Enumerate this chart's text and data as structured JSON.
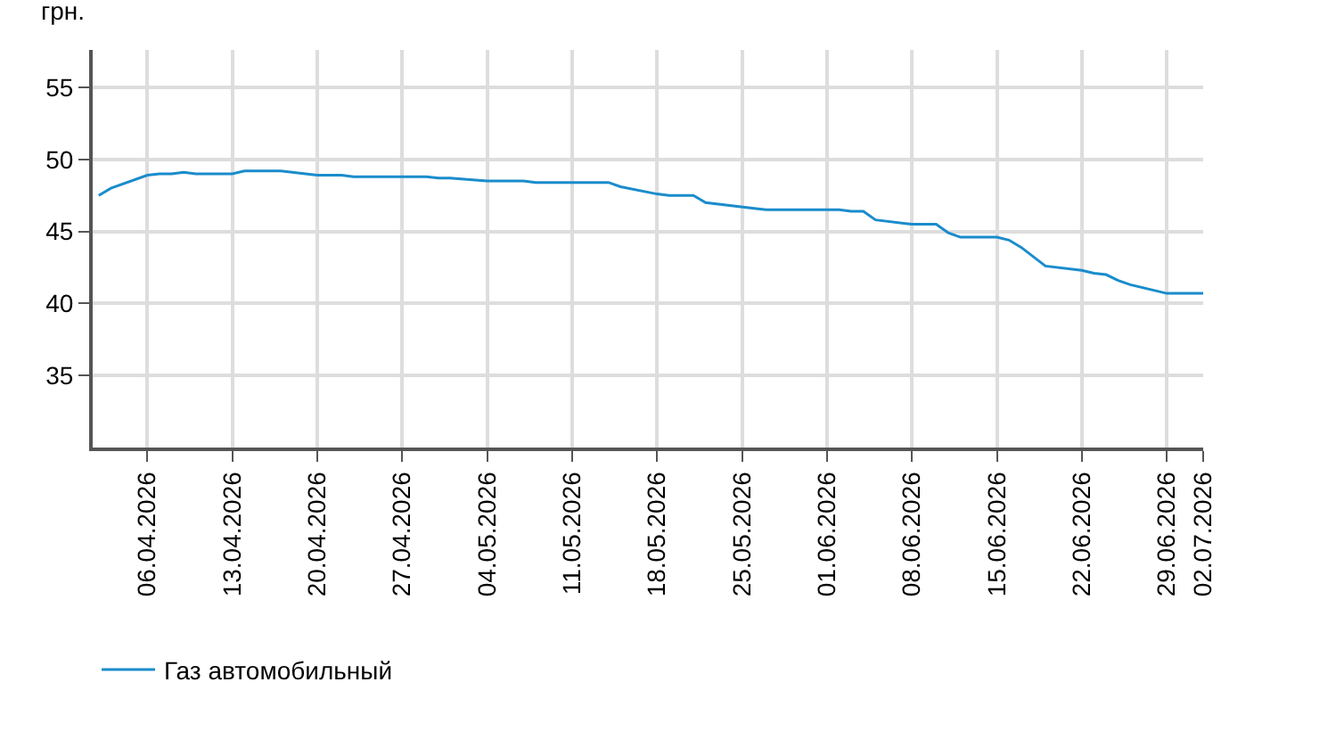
{
  "chart_data": {
    "type": "line",
    "ylabel": "грн.",
    "series": [
      {
        "name": "Газ автомобильный",
        "color": "#1a8ccc",
        "x": [
          "2026-04-02",
          "2026-04-03",
          "2026-04-06",
          "2026-04-07",
          "2026-04-08",
          "2026-04-09",
          "2026-04-10",
          "2026-04-13",
          "2026-04-14",
          "2026-04-17",
          "2026-04-20",
          "2026-04-22",
          "2026-04-23",
          "2026-04-29",
          "2026-04-30",
          "2026-05-01",
          "2026-05-04",
          "2026-05-07",
          "2026-05-08",
          "2026-05-14",
          "2026-05-15",
          "2026-05-18",
          "2026-05-19",
          "2026-05-21",
          "2026-05-22",
          "2026-05-26",
          "2026-05-27",
          "2026-06-02",
          "2026-06-03",
          "2026-06-04",
          "2026-06-05",
          "2026-06-08",
          "2026-06-10",
          "2026-06-11",
          "2026-06-12",
          "2026-06-15",
          "2026-06-16",
          "2026-06-17",
          "2026-06-19",
          "2026-06-22",
          "2026-06-23",
          "2026-06-24",
          "2026-06-25",
          "2026-06-26",
          "2026-06-29",
          "2026-07-02"
        ],
        "values": [
          47.5,
          48.0,
          48.9,
          49.0,
          49.0,
          49.1,
          49.0,
          49.0,
          49.2,
          49.2,
          48.9,
          48.9,
          48.8,
          48.8,
          48.7,
          48.7,
          48.5,
          48.5,
          48.4,
          48.4,
          48.1,
          47.6,
          47.5,
          47.5,
          47.0,
          46.6,
          46.5,
          46.5,
          46.4,
          46.4,
          45.8,
          45.5,
          45.5,
          44.9,
          44.6,
          44.6,
          44.4,
          43.9,
          42.6,
          42.3,
          42.1,
          42.0,
          41.6,
          41.3,
          40.7,
          40.7
        ]
      }
    ],
    "xlim": [
      "2026-04-01T12:00",
      "2026-07-02"
    ],
    "xticks": [
      {
        "value": "2026-04-06",
        "label": "06.04.2026"
      },
      {
        "value": "2026-04-13",
        "label": "13.04.2026"
      },
      {
        "value": "2026-04-20",
        "label": "20.04.2026"
      },
      {
        "value": "2026-04-27",
        "label": "27.04.2026"
      },
      {
        "value": "2026-05-04",
        "label": "04.05.2026"
      },
      {
        "value": "2026-05-11",
        "label": "11.05.2026"
      },
      {
        "value": "2026-05-18",
        "label": "18.05.2026"
      },
      {
        "value": "2026-05-25",
        "label": "25.05.2026"
      },
      {
        "value": "2026-06-01",
        "label": "01.06.2026"
      },
      {
        "value": "2026-06-08",
        "label": "08.06.2026"
      },
      {
        "value": "2026-06-15",
        "label": "15.06.2026"
      },
      {
        "value": "2026-06-22",
        "label": "22.06.2026"
      },
      {
        "value": "2026-06-29",
        "label": "29.06.2026"
      },
      {
        "value": "2026-07-02",
        "label": "02.07.2026"
      }
    ],
    "ylim": [
      30,
      57.6
    ],
    "yticks": [
      35,
      40,
      45,
      50,
      55
    ],
    "grid": true,
    "legend": "bottom left",
    "marker": "none",
    "line_style": "solid"
  }
}
